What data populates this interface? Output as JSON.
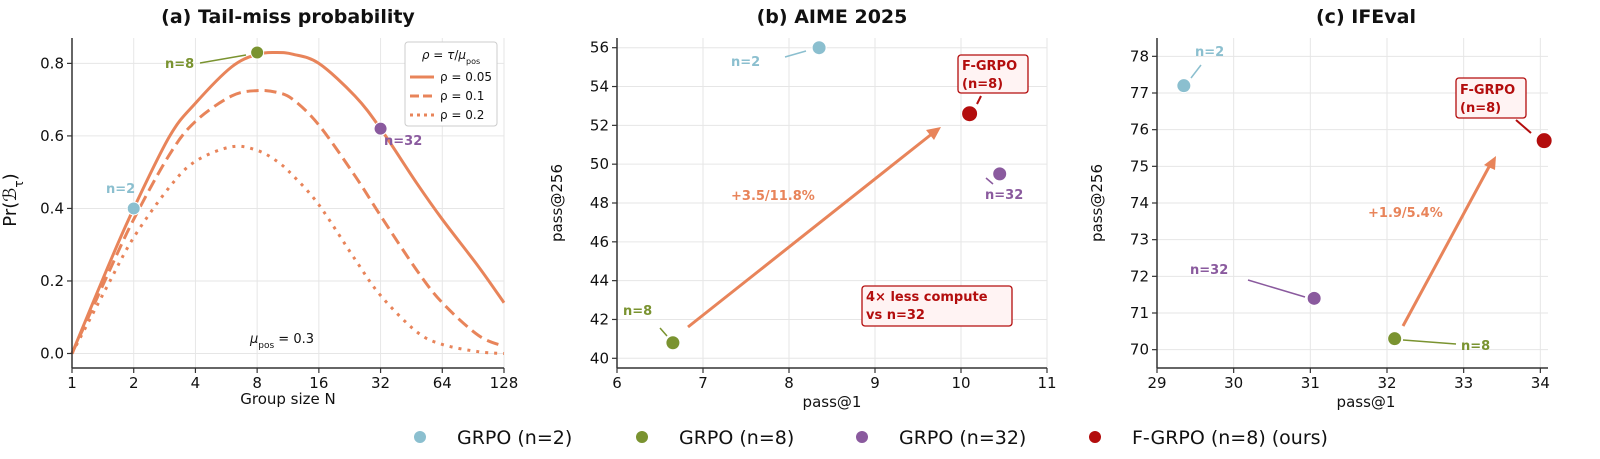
{
  "colors": {
    "n2": "#8bbfcf",
    "n8": "#7a9330",
    "n32": "#8a5a9e",
    "fgrpo": "#b30d0d",
    "curve": "#e8845a",
    "gain": "#e8845a"
  },
  "chart_data": [
    {
      "type": "line",
      "title": "(a) Tail-miss probability",
      "xlabel": "Group size N",
      "ylabel": "Pr(B_τ)",
      "xscale": "log2",
      "xlim": [
        1,
        128
      ],
      "ylim": [
        -0.04,
        0.87
      ],
      "xticks": [
        1,
        2,
        4,
        8,
        16,
        32,
        64,
        128
      ],
      "xtick_labels": [
        "1",
        "2",
        "4",
        "8",
        "16",
        "32",
        "64",
        "128"
      ],
      "yticks": [
        0.0,
        0.2,
        0.4,
        0.6,
        0.8
      ],
      "ytick_labels": [
        "0.0",
        "0.2",
        "0.4",
        "0.6",
        "0.8"
      ],
      "grid": true,
      "legend": {
        "title": "ρ = τ/μpos",
        "placement": "top-right",
        "entries": [
          "ρ = 0.05",
          "ρ = 0.1",
          "ρ = 0.2"
        ]
      },
      "annotation": "μpos = 0.3",
      "series": [
        {
          "name": "ρ = 0.05",
          "style": "solid",
          "x": [
            1,
            1.5,
            2,
            3,
            4,
            6,
            8,
            10,
            12,
            16,
            24,
            32,
            48,
            64,
            96,
            128
          ],
          "y": [
            0.0,
            0.24,
            0.4,
            0.6,
            0.69,
            0.79,
            0.825,
            0.83,
            0.825,
            0.8,
            0.71,
            0.62,
            0.47,
            0.37,
            0.24,
            0.14
          ]
        },
        {
          "name": "ρ = 0.1",
          "style": "dashed",
          "x": [
            1,
            1.5,
            2,
            3,
            4,
            6,
            8,
            10,
            12,
            16,
            24,
            32,
            48,
            64,
            96,
            128
          ],
          "y": [
            0.0,
            0.22,
            0.37,
            0.55,
            0.64,
            0.71,
            0.725,
            0.72,
            0.7,
            0.63,
            0.49,
            0.38,
            0.23,
            0.14,
            0.05,
            0.02
          ]
        },
        {
          "name": "ρ = 0.2",
          "style": "dotted",
          "x": [
            1,
            1.5,
            2,
            3,
            4,
            6,
            8,
            10,
            12,
            16,
            24,
            32,
            48,
            64,
            96,
            128
          ],
          "y": [
            0.0,
            0.19,
            0.32,
            0.46,
            0.53,
            0.57,
            0.56,
            0.53,
            0.49,
            0.41,
            0.26,
            0.16,
            0.06,
            0.025,
            0.005,
            0.0
          ]
        }
      ],
      "points": [
        {
          "label": "n=2",
          "x": 2,
          "y": 0.4,
          "color_key": "n2"
        },
        {
          "label": "n=8",
          "x": 8,
          "y": 0.83,
          "color_key": "n8"
        },
        {
          "label": "n=32",
          "x": 32,
          "y": 0.62,
          "color_key": "n32"
        }
      ]
    },
    {
      "type": "scatter",
      "title": "(b) AIME 2025",
      "xlabel": "pass@1",
      "ylabel": "pass@256",
      "xlim": [
        6,
        11
      ],
      "ylim": [
        39.5,
        56.5
      ],
      "xticks": [
        6,
        7,
        8,
        9,
        10,
        11
      ],
      "yticks": [
        40,
        42,
        44,
        46,
        48,
        50,
        52,
        54,
        56
      ],
      "grid": true,
      "points": [
        {
          "label": "n=2",
          "x": 8.35,
          "y": 56.0,
          "color_key": "n2"
        },
        {
          "label": "n=8",
          "x": 6.65,
          "y": 40.8,
          "color_key": "n8"
        },
        {
          "label": "n=32",
          "x": 10.45,
          "y": 49.5,
          "color_key": "n32"
        },
        {
          "label": "F-GRPO (n=8)",
          "x": 10.1,
          "y": 52.6,
          "color_key": "fgrpo"
        }
      ],
      "gain_label": "+3.5/11.8%",
      "callout": "4× less compute vs n=32"
    },
    {
      "type": "scatter",
      "title": "(c) IFEval",
      "xlabel": "pass@1",
      "ylabel": "pass@256",
      "xlim": [
        29,
        34.1
      ],
      "ylim": [
        69.5,
        78.5
      ],
      "xticks": [
        29,
        30,
        31,
        32,
        33,
        34
      ],
      "yticks": [
        70,
        71,
        72,
        73,
        74,
        75,
        76,
        77,
        78
      ],
      "grid": true,
      "points": [
        {
          "label": "n=2",
          "x": 29.35,
          "y": 77.2,
          "color_key": "n2"
        },
        {
          "label": "n=32",
          "x": 31.05,
          "y": 71.4,
          "color_key": "n32"
        },
        {
          "label": "n=8",
          "x": 32.1,
          "y": 70.3,
          "color_key": "n8"
        },
        {
          "label": "F-GRPO (n=8)",
          "x": 34.05,
          "y": 75.7,
          "color_key": "fgrpo"
        }
      ],
      "gain_label": "+1.9/5.4%"
    }
  ],
  "legend": {
    "entries": [
      {
        "label": "GRPO (n=2)",
        "color_key": "n2"
      },
      {
        "label": "GRPO (n=8)",
        "color_key": "n8"
      },
      {
        "label": "GRPO (n=32)",
        "color_key": "n32"
      },
      {
        "label": "F-GRPO (n=8) (ours)",
        "color_key": "fgrpo"
      }
    ]
  },
  "labels": {
    "a_n2": "n=2",
    "a_n8": "n=8",
    "a_n32": "n=32",
    "b_n2": "n=2",
    "b_n8": "n=8",
    "b_n32": "n=32",
    "b_fgrpo_line1": "F-GRPO",
    "b_fgrpo_line2": "(n=8)",
    "b_callout_line1": "4× less compute",
    "b_callout_line2": "vs n=32",
    "c_n2": "n=2",
    "c_n8": "n=8",
    "c_n32": "n=32",
    "c_fgrpo_line1": "F-GRPO",
    "c_fgrpo_line2": "(n=8)"
  }
}
